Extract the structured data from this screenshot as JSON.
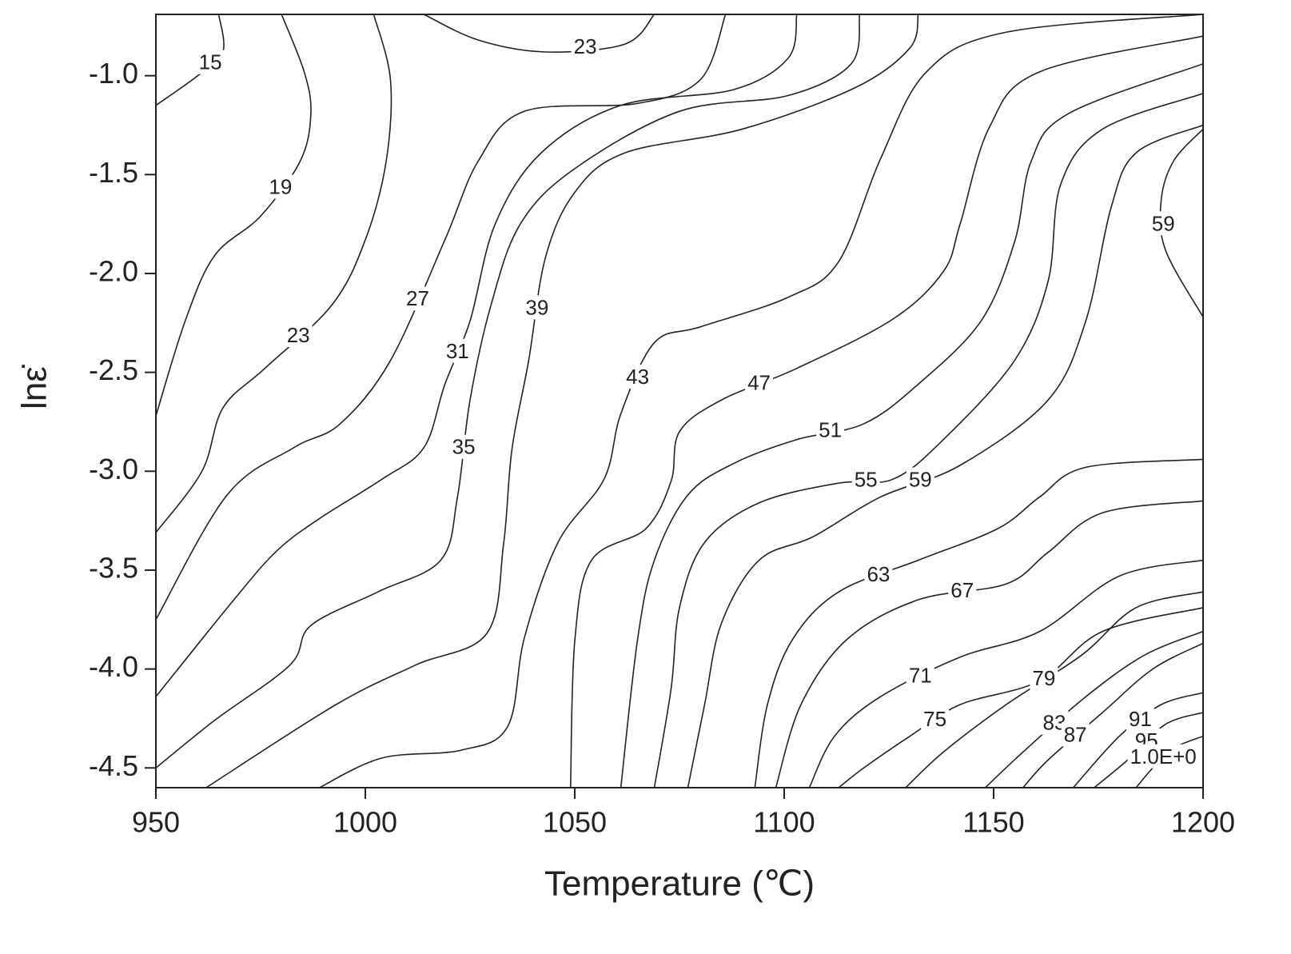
{
  "chart_data": {
    "type": "contour",
    "x_label": "Temperature (℃)",
    "y_label": "lnε̇",
    "xlim": [
      950,
      1200
    ],
    "ylim": [
      -4.6,
      -0.69
    ],
    "xticks": [
      950,
      1000,
      1050,
      1100,
      1150,
      1200
    ],
    "yticks": [
      {
        "value": -1,
        "label": "-1.0"
      },
      -1.5,
      {
        "value": -2,
        "label": "-2.0"
      },
      -2.5,
      {
        "value": -3,
        "label": "-3.0"
      },
      -3.5,
      {
        "value": -4,
        "label": "-4.0"
      },
      -4.5
    ],
    "color": "#222222",
    "contours": [
      {
        "level": 15,
        "x": [
          950,
          960,
          966,
          965
        ],
        "y": [
          -1.15,
          -1.0,
          -0.88,
          -0.69
        ]
      },
      {
        "level": 19,
        "x": [
          980,
          985.4,
          987,
          984.5,
          975,
          964,
          957,
          950
        ],
        "y": [
          -0.69,
          -0.98,
          -1.19,
          -1.43,
          -1.71,
          -1.91,
          -2.24,
          -2.72
        ]
      },
      {
        "level": 23,
        "x": [
          1002,
          1006,
          1005,
          1000,
          992,
          976,
          966,
          961,
          950
        ],
        "y": [
          -0.69,
          -1.02,
          -1.43,
          -1.83,
          -2.16,
          -2.48,
          -2.68,
          -3.0,
          -3.31
        ]
      },
      {
        "level": 23,
        "x": [
          1014,
          1027,
          1043,
          1062,
          1069
        ],
        "y": [
          -0.69,
          -0.82,
          -0.88,
          -0.84,
          -0.69
        ]
      },
      {
        "level": 27,
        "x": [
          1086,
          1080,
          1065,
          1038,
          1027,
          1019,
          1006,
          994,
          983,
          967,
          950
        ],
        "y": [
          -0.69,
          -1.02,
          -1.14,
          -1.18,
          -1.43,
          -1.83,
          -2.44,
          -2.76,
          -2.88,
          -3.12,
          -3.75
        ]
      },
      {
        "level": 31,
        "x": [
          1103,
          1101,
          1088,
          1061,
          1042,
          1031,
          1025,
          1019,
          1014,
          1004,
          989,
          979,
          969,
          950
        ],
        "y": [
          -0.69,
          -0.91,
          -1.07,
          -1.15,
          -1.39,
          -1.75,
          -2.24,
          -2.56,
          -2.88,
          -3.04,
          -3.24,
          -3.4,
          -3.64,
          -4.14
        ]
      },
      {
        "level": 35,
        "x": [
          1118,
          1116,
          1101,
          1075,
          1050,
          1037,
          1030,
          1025,
          1022,
          1018,
          1003,
          987,
          982,
          964,
          950
        ],
        "y": [
          -0.69,
          -0.94,
          -1.1,
          -1.18,
          -1.47,
          -1.75,
          -2.16,
          -2.64,
          -3.13,
          -3.45,
          -3.61,
          -3.78,
          -3.98,
          -4.26,
          -4.5
        ]
      },
      {
        "level": 39,
        "x": [
          1132,
          1130,
          1117,
          1090,
          1062,
          1050,
          1043,
          1039,
          1035,
          1033,
          1029,
          1012,
          993,
          962
        ],
        "y": [
          -0.69,
          -0.86,
          -1.06,
          -1.27,
          -1.39,
          -1.59,
          -1.92,
          -2.44,
          -2.89,
          -3.37,
          -3.82,
          -3.98,
          -4.18,
          -4.6
        ]
      },
      {
        "level": 43,
        "x": [
          1200,
          1153,
          1134,
          1123,
          1113,
          1101,
          1080,
          1069,
          1061,
          1057,
          1046,
          1038,
          1034,
          1023,
          1004,
          989
        ],
        "y": [
          -0.69,
          -0.78,
          -0.98,
          -1.42,
          -1.94,
          -2.12,
          -2.27,
          -2.35,
          -2.71,
          -3.04,
          -3.36,
          -3.84,
          -4.29,
          -4.41,
          -4.45,
          -4.6
        ]
      },
      {
        "level": 47,
        "x": [
          1200,
          1161,
          1149,
          1142,
          1138,
          1126,
          1103,
          1085,
          1075,
          1073,
          1067,
          1054,
          1050,
          1049
        ],
        "y": [
          -0.8,
          -0.98,
          -1.26,
          -1.75,
          -1.99,
          -2.23,
          -2.48,
          -2.64,
          -2.8,
          -3.05,
          -3.29,
          -3.45,
          -3.86,
          -4.6
        ]
      },
      {
        "level": 51,
        "x": [
          1200,
          1168,
          1159,
          1155,
          1147,
          1132,
          1119,
          1103,
          1088,
          1077,
          1069,
          1065,
          1061
        ],
        "y": [
          -0.94,
          -1.19,
          -1.43,
          -1.84,
          -2.24,
          -2.56,
          -2.76,
          -2.84,
          -2.96,
          -3.12,
          -3.45,
          -3.85,
          -4.6
        ]
      },
      {
        "level": 55,
        "x": [
          1200,
          1176,
          1166,
          1163,
          1155,
          1138,
          1126,
          1113,
          1094,
          1081,
          1075,
          1073,
          1069
        ],
        "y": [
          -1.09,
          -1.27,
          -1.55,
          -2.04,
          -2.44,
          -2.84,
          -3.04,
          -3.06,
          -3.16,
          -3.36,
          -3.69,
          -4.1,
          -4.6
        ]
      },
      {
        "level": 59,
        "x": [
          1200,
          1184,
          1178,
          1172,
          1163,
          1142,
          1123,
          1107,
          1094,
          1085,
          1081,
          1077
        ],
        "y": [
          -1.25,
          -1.39,
          -1.67,
          -2.24,
          -2.64,
          -2.97,
          -3.13,
          -3.33,
          -3.45,
          -3.77,
          -4.18,
          -4.6
        ]
      },
      {
        "level": 59,
        "x": [
          1200,
          1193,
          1190,
          1191,
          1200
        ],
        "y": [
          -1.27,
          -1.43,
          -1.63,
          -1.88,
          -2.22
        ]
      },
      {
        "level": 63,
        "x": [
          1200,
          1172,
          1161,
          1151,
          1132,
          1113,
          1102,
          1096,
          1093
        ],
        "y": [
          -2.94,
          -2.98,
          -3.13,
          -3.29,
          -3.45,
          -3.61,
          -3.85,
          -4.18,
          -4.6
        ]
      },
      {
        "level": 67,
        "x": [
          1200,
          1176,
          1163,
          1153,
          1132,
          1115,
          1104,
          1098
        ],
        "y": [
          -3.15,
          -3.21,
          -3.41,
          -3.57,
          -3.65,
          -3.85,
          -4.18,
          -4.6
        ]
      },
      {
        "level": 71,
        "x": [
          1200,
          1180,
          1161,
          1142,
          1123,
          1112,
          1106
        ],
        "y": [
          -3.45,
          -3.53,
          -3.81,
          -3.94,
          -4.14,
          -4.34,
          -4.6
        ]
      },
      {
        "level": 75,
        "x": [
          1200,
          1176,
          1161,
          1142,
          1130,
          1119,
          1113
        ],
        "y": [
          -3.69,
          -3.81,
          -4.06,
          -4.18,
          -4.34,
          -4.5,
          -4.6
        ]
      },
      {
        "level": 79,
        "x": [
          1200,
          1184,
          1171,
          1153,
          1138,
          1129
        ],
        "y": [
          -3.61,
          -3.69,
          -3.93,
          -4.18,
          -4.42,
          -4.6
        ]
      },
      {
        "level": 83,
        "x": [
          1200,
          1186,
          1172,
          1157,
          1148
        ],
        "y": [
          -3.81,
          -3.93,
          -4.14,
          -4.42,
          -4.6
        ]
      },
      {
        "level": 87,
        "x": [
          1200,
          1188,
          1176,
          1163,
          1157
        ],
        "y": [
          -3.87,
          -4.0,
          -4.22,
          -4.46,
          -4.6
        ]
      },
      {
        "level": 91,
        "x": [
          1200,
          1190,
          1180,
          1169
        ],
        "y": [
          -4.12,
          -4.18,
          -4.34,
          -4.6
        ]
      },
      {
        "level": 95,
        "x": [
          1200,
          1191,
          1182,
          1174
        ],
        "y": [
          -4.22,
          -4.28,
          -4.46,
          -4.6
        ]
      },
      {
        "level": 1,
        "level_label": "1.0E+0",
        "x": [
          1200,
          1193,
          1188,
          1184
        ],
        "y": [
          -4.34,
          -4.4,
          -4.5,
          -4.6
        ]
      }
    ]
  }
}
